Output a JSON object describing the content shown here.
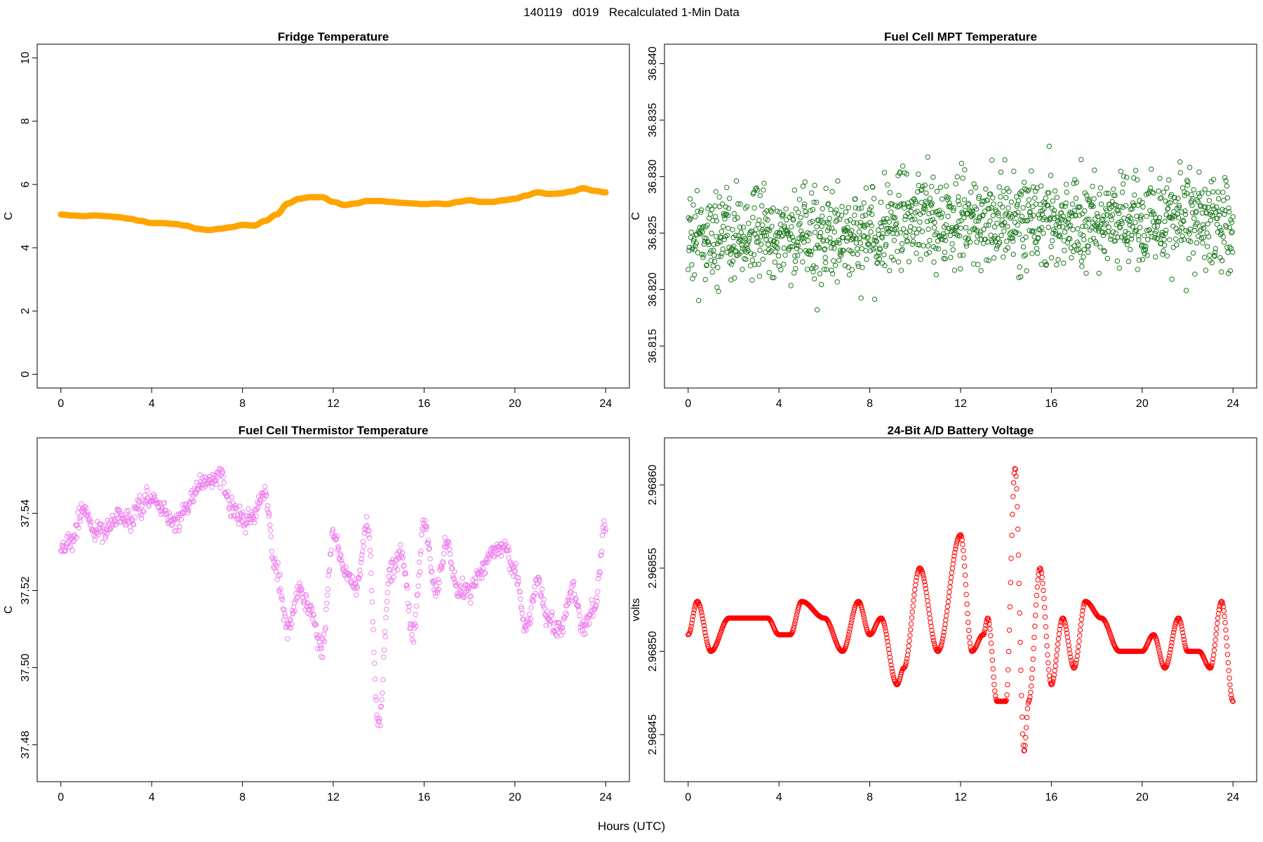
{
  "page": {
    "title": "140119   d019   Recalculated 1-Min Data",
    "x_label": "Hours (UTC)"
  },
  "chart_data": [
    {
      "type": "line",
      "title": "Fridge Temperature",
      "xlabel": "Hours (UTC)",
      "ylabel": "C",
      "xlim": [
        0,
        24
      ],
      "ylim": [
        0,
        10
      ],
      "xticks": [
        0,
        4,
        8,
        12,
        16,
        20,
        24
      ],
      "yticks": [
        0,
        2,
        4,
        6,
        8,
        10
      ],
      "ytick_labels": [
        "0",
        "2",
        "4",
        "6",
        "8",
        "10"
      ],
      "color": "#FFA500",
      "style": "thick",
      "x": [
        0,
        0.5,
        1,
        1.5,
        2,
        2.5,
        3,
        3.5,
        4,
        4.5,
        5,
        5.5,
        6,
        6.5,
        7,
        7.5,
        8,
        8.5,
        9,
        9.5,
        10,
        10.5,
        11,
        11.5,
        12,
        12.5,
        13,
        13.5,
        14,
        14.5,
        15,
        15.5,
        16,
        16.5,
        17,
        17.5,
        18,
        18.5,
        19,
        19.5,
        20,
        20.5,
        21,
        21.5,
        22,
        22.5,
        23,
        23.5,
        24
      ],
      "y": [
        5.05,
        5.02,
        5.0,
        5.02,
        5.0,
        4.97,
        4.92,
        4.85,
        4.78,
        4.78,
        4.75,
        4.7,
        4.6,
        4.56,
        4.6,
        4.65,
        4.72,
        4.7,
        4.85,
        5.05,
        5.4,
        5.55,
        5.6,
        5.6,
        5.45,
        5.35,
        5.4,
        5.48,
        5.48,
        5.45,
        5.42,
        5.4,
        5.38,
        5.4,
        5.38,
        5.45,
        5.5,
        5.45,
        5.45,
        5.5,
        5.55,
        5.65,
        5.75,
        5.7,
        5.72,
        5.78,
        5.88,
        5.8,
        5.75
      ]
    },
    {
      "type": "scatter",
      "title": "Fuel Cell MPT Temperature",
      "xlabel": "Hours (UTC)",
      "ylabel": "C",
      "xlim": [
        0,
        24
      ],
      "ylim": [
        36.8125,
        36.8405
      ],
      "xticks": [
        0,
        4,
        8,
        12,
        16,
        20,
        24
      ],
      "yticks": [
        36.815,
        36.82,
        36.825,
        36.83,
        36.835,
        36.84
      ],
      "ytick_labels": [
        "36.815",
        "36.820",
        "36.825",
        "36.830",
        "36.835",
        "36.840"
      ],
      "color": "#1E7A1E",
      "noise": {
        "center": 36.8255,
        "spread": 0.0052,
        "n": 1400
      }
    },
    {
      "type": "scatter",
      "title": "Fuel Cell Thermistor Temperature",
      "xlabel": "Hours (UTC)",
      "ylabel": "C",
      "xlim": [
        0,
        24
      ],
      "ylim": [
        37.474,
        37.556
      ],
      "xticks": [
        0,
        4,
        8,
        12,
        16,
        20,
        24
      ],
      "yticks": [
        37.48,
        37.5,
        37.52,
        37.54
      ],
      "ytick_labels": [
        "37.48",
        "37.50",
        "37.52",
        "37.54"
      ],
      "color": "#EE82EE",
      "x": [
        0,
        0.5,
        1,
        1.5,
        2,
        2.5,
        3,
        3.5,
        4,
        4.5,
        5,
        5.5,
        6,
        6.5,
        7,
        7.5,
        8,
        8.5,
        9,
        9.5,
        10,
        10.5,
        11,
        11.5,
        12,
        12.5,
        13,
        13.5,
        14,
        14.5,
        15,
        15.5,
        16,
        16.5,
        17,
        17.5,
        18,
        18.5,
        19,
        19.5,
        20,
        20.5,
        21,
        21.5,
        22,
        22.5,
        23,
        23.5,
        24
      ],
      "y": [
        37.531,
        37.533,
        37.541,
        37.535,
        37.536,
        37.539,
        37.538,
        37.541,
        37.544,
        37.541,
        37.537,
        37.541,
        37.547,
        37.548,
        37.55,
        37.542,
        37.538,
        37.54,
        37.545,
        37.525,
        37.51,
        37.52,
        37.515,
        37.505,
        37.535,
        37.525,
        37.52,
        37.537,
        37.485,
        37.525,
        37.53,
        37.508,
        37.537,
        37.52,
        37.532,
        37.52,
        37.52,
        37.525,
        37.53,
        37.532,
        37.525,
        37.51,
        37.522,
        37.512,
        37.51,
        37.52,
        37.51,
        37.515,
        37.538
      ]
    },
    {
      "type": "scatter",
      "title": "24-Bit A/D Battery Voltage",
      "xlabel": "Hours (UTC)",
      "ylabel": "volts",
      "xlim": [
        0,
        24
      ],
      "ylim": [
        2.96843,
        2.96862
      ],
      "xticks": [
        0,
        4,
        8,
        12,
        16,
        20,
        24
      ],
      "yticks": [
        2.96845,
        2.9685,
        2.96855,
        2.9686
      ],
      "ytick_labels": [
        "2.96845",
        "2.96850",
        "2.96855",
        "2.96860"
      ],
      "color": "#FF0000",
      "x": [
        0,
        0.4,
        1,
        1.8,
        2.5,
        3,
        3.5,
        4,
        4.5,
        5,
        6,
        6.8,
        7.5,
        8,
        8.5,
        9.2,
        9.5,
        10.2,
        11,
        12,
        12.5,
        13,
        13.2,
        13.6,
        14,
        14.4,
        14.8,
        15,
        15.5,
        16,
        16.5,
        17,
        17.5,
        18.2,
        19,
        20,
        20.5,
        21,
        21.6,
        22,
        22.5,
        23,
        23.5,
        24
      ],
      "y": [
        2.96851,
        2.96853,
        2.9685,
        2.96852,
        2.96852,
        2.96852,
        2.96852,
        2.96851,
        2.96851,
        2.96853,
        2.96852,
        2.9685,
        2.96853,
        2.96851,
        2.96852,
        2.96848,
        2.96849,
        2.96855,
        2.9685,
        2.96857,
        2.9685,
        2.96851,
        2.96852,
        2.96847,
        2.96847,
        2.96861,
        2.96844,
        2.96847,
        2.96855,
        2.96848,
        2.96852,
        2.96849,
        2.96853,
        2.96852,
        2.9685,
        2.9685,
        2.96851,
        2.96849,
        2.96852,
        2.9685,
        2.9685,
        2.96849,
        2.96853,
        2.96847
      ]
    }
  ]
}
